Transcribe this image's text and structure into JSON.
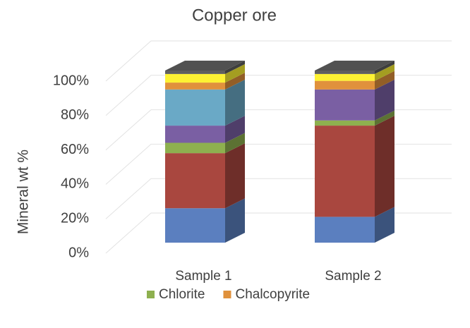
{
  "chart_data": {
    "type": "bar3d-stacked",
    "title": "Copper ore",
    "y_label": "Mineral wt %",
    "categories": [
      "Sample 1",
      "Sample 2"
    ],
    "ylim": [
      0,
      100
    ],
    "yticks": [
      {
        "value": 0,
        "label": "0%"
      },
      {
        "value": 20,
        "label": "20%"
      },
      {
        "value": 40,
        "label": "40%"
      },
      {
        "value": 60,
        "label": "60%"
      },
      {
        "value": 80,
        "label": "80%"
      },
      {
        "value": 100,
        "label": "100%"
      }
    ],
    "grid": true,
    "series": [
      {
        "color": "#5b7fbf",
        "values": [
          20,
          15
        ]
      },
      {
        "color": "#a9473f",
        "values": [
          32,
          53
        ]
      },
      {
        "name": "Chlorite",
        "color": "#8eb04f",
        "values": [
          6,
          3
        ]
      },
      {
        "color": "#7a5fa3",
        "values": [
          10,
          18
        ]
      },
      {
        "color": "#6aa9c6",
        "values": [
          21,
          0
        ]
      },
      {
        "name": "Chalcopyrite",
        "color": "#e0913c",
        "values": [
          4,
          5
        ]
      },
      {
        "color": "#fdf233",
        "values": [
          5,
          4
        ]
      },
      {
        "color": "#5f5f5f",
        "values": [
          2,
          2
        ]
      }
    ]
  }
}
